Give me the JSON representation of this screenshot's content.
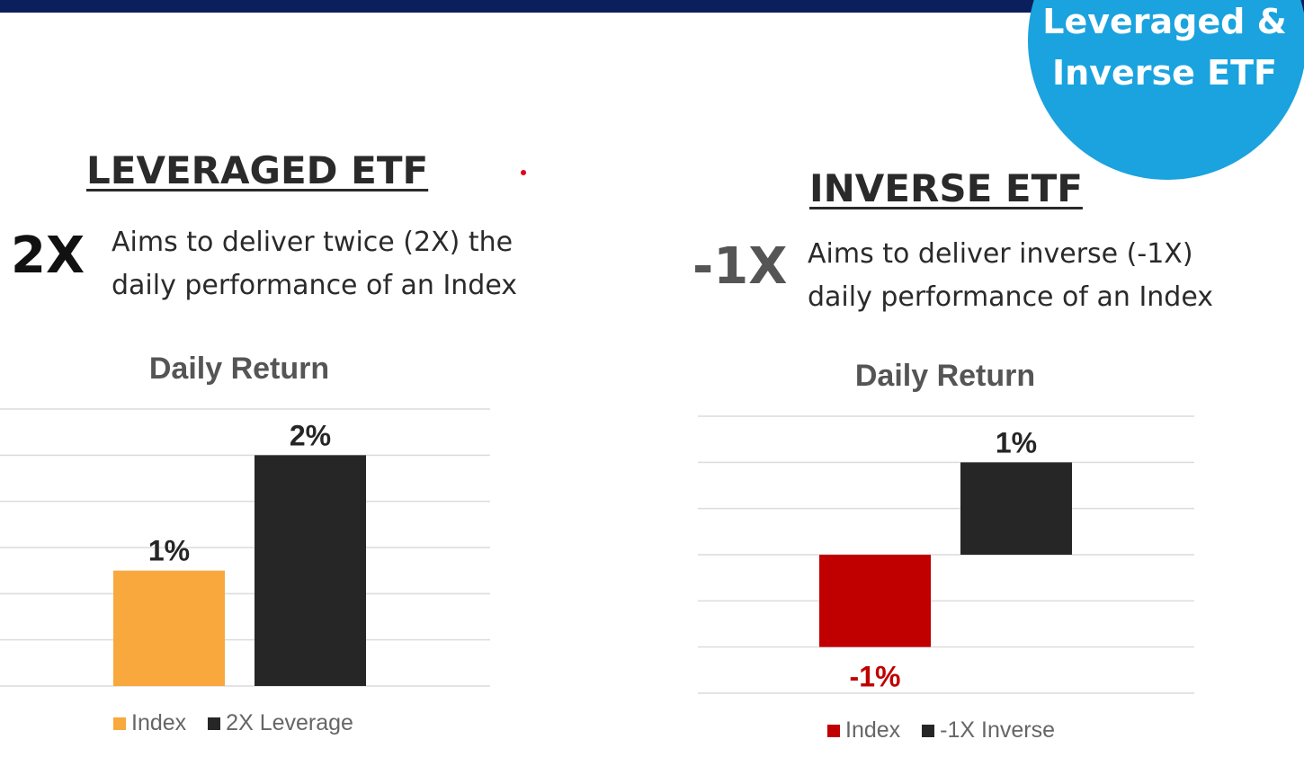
{
  "badge": {
    "text": "Leveraged &\nInverse ETF",
    "color": "#1aa3de"
  },
  "colors": {
    "topbar": "#0b1f5c",
    "gridline": "#dcdcdc",
    "text_dark": "#2a2a2a",
    "inverse_multiplier": "#555555"
  },
  "left": {
    "heading": "LEVERAGED ETF",
    "multiplier": "2X",
    "description": "Aims to deliver twice (2X) the\ndaily performance of an Index"
  },
  "right": {
    "heading": "INVERSE ETF",
    "multiplier": "-1X",
    "description": "Aims to deliver inverse (-1X)\ndaily performance of an Index"
  },
  "chart_data": [
    {
      "type": "bar",
      "title": "Daily Return",
      "categories": [
        "Index",
        "2X Leverage"
      ],
      "values": [
        1,
        2
      ],
      "data_labels": [
        "1%",
        "2%"
      ],
      "colors": [
        "#f8a83d",
        "#262626"
      ],
      "label_colors": [
        "#262626",
        "#262626"
      ],
      "ylim": [
        0,
        2.4
      ],
      "gridlines": [
        0,
        0.4,
        0.8,
        1.2,
        1.6,
        2.0,
        2.4
      ],
      "grid": true,
      "legend": "bottom",
      "legend_items": [
        {
          "label": "Index",
          "color": "#f8a83d"
        },
        {
          "label": "2X Leverage",
          "color": "#262626"
        }
      ]
    },
    {
      "type": "bar",
      "title": "Daily Return",
      "categories": [
        "Index",
        "-1X Inverse"
      ],
      "values": [
        -1,
        1
      ],
      "data_labels": [
        "-1%",
        "1%"
      ],
      "colors": [
        "#c00000",
        "#262626"
      ],
      "label_colors": [
        "#c00000",
        "#262626"
      ],
      "ylim": [
        -1.5,
        1.5
      ],
      "gridlines": [
        -1.5,
        -1,
        -0.5,
        0,
        0.5,
        1,
        1.5
      ],
      "grid": true,
      "legend": "bottom",
      "legend_items": [
        {
          "label": "Index",
          "color": "#c00000"
        },
        {
          "label": "-1X Inverse",
          "color": "#262626"
        }
      ]
    }
  ]
}
